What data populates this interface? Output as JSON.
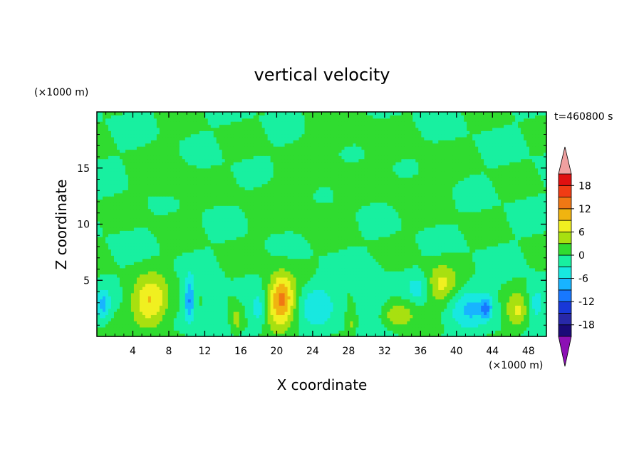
{
  "chart_data": {
    "type": "heatmap",
    "title": "vertical velocity",
    "xlabel": "X coordinate",
    "ylabel": "Z coordinate",
    "x_unit": "(×1000 m)",
    "y_unit": "(×1000 m)",
    "time_label": "t=460800 s",
    "xlim": [
      0,
      50
    ],
    "ylim": [
      0,
      20
    ],
    "x_ticks": [
      4,
      8,
      12,
      16,
      20,
      24,
      28,
      32,
      36,
      40,
      44,
      48
    ],
    "y_ticks": [
      5,
      10,
      15
    ],
    "colorbar": {
      "levels": [
        -21,
        -18,
        -15,
        -12,
        -9,
        -6,
        -3,
        0,
        3,
        6,
        9,
        12,
        15,
        18,
        21
      ],
      "tick_labels": [
        18,
        12,
        6,
        0,
        -6,
        -12,
        -18
      ],
      "colors": [
        "#1a0a78",
        "#2828a8",
        "#1838d8",
        "#1878ff",
        "#18b4ff",
        "#18e8e0",
        "#18f0a0",
        "#30dc30",
        "#a8e010",
        "#f0f020",
        "#f0b410",
        "#f07814",
        "#f03c14",
        "#e01010"
      ],
      "low_extend_color": "#8c10b4",
      "high_extend_color": "#f0a0a0"
    },
    "background_level": 0.0,
    "features": [
      {
        "x": 6.0,
        "z": 3.0,
        "value": 9.0,
        "sx": 2.0,
        "sz": 2.3
      },
      {
        "x": 20.5,
        "z": 3.3,
        "value": 13.0,
        "sx": 1.5,
        "sz": 2.2
      },
      {
        "x": 33.5,
        "z": 2.0,
        "value": 5.5,
        "sx": 1.7,
        "sz": 1.2
      },
      {
        "x": 38.3,
        "z": 4.6,
        "value": 6.5,
        "sx": 1.7,
        "sz": 1.8
      },
      {
        "x": 46.8,
        "z": 2.2,
        "value": 6.0,
        "sx": 1.3,
        "sz": 1.6
      },
      {
        "x": 15.5,
        "z": 1.5,
        "value": 4.5,
        "sx": 0.6,
        "sz": 1.2
      },
      {
        "x": 28.3,
        "z": 1.2,
        "value": 3.5,
        "sx": 0.5,
        "sz": 0.9
      },
      {
        "x": 10.3,
        "z": 3.2,
        "value": -9.5,
        "sx": 0.6,
        "sz": 2.0
      },
      {
        "x": 13.0,
        "z": 2.3,
        "value": -4.0,
        "sx": 1.2,
        "sz": 1.8
      },
      {
        "x": 18.0,
        "z": 2.3,
        "value": -4.5,
        "sx": 0.8,
        "sz": 1.6
      },
      {
        "x": 24.5,
        "z": 3.0,
        "value": -5.0,
        "sx": 2.0,
        "sz": 2.0
      },
      {
        "x": 30.5,
        "z": 3.5,
        "value": -4.0,
        "sx": 1.6,
        "sz": 2.0
      },
      {
        "x": 35.8,
        "z": 4.4,
        "value": -4.0,
        "sx": 1.2,
        "sz": 1.2
      },
      {
        "x": 41.5,
        "z": 2.5,
        "value": -5.5,
        "sx": 2.5,
        "sz": 2.0
      },
      {
        "x": 43.3,
        "z": 2.6,
        "value": -7.5,
        "sx": 0.6,
        "sz": 0.9
      },
      {
        "x": 0.7,
        "z": 2.8,
        "value": -6.5,
        "sx": 0.8,
        "sz": 1.3
      },
      {
        "x": 48.8,
        "z": 3.0,
        "value": -5.0,
        "sx": 1.0,
        "sz": 1.6
      },
      {
        "x": 8.0,
        "z": 14.0,
        "value": 1.5,
        "sx": 3.0,
        "sz": 3.0
      },
      {
        "x": 22.0,
        "z": 12.0,
        "value": 1.5,
        "sx": 5.0,
        "sz": 3.0
      },
      {
        "x": 36.0,
        "z": 13.5,
        "value": 1.3,
        "sx": 4.0,
        "sz": 3.0
      },
      {
        "x": 27.0,
        "z": 18.0,
        "value": 1.5,
        "sx": 4.0,
        "sz": 2.5
      }
    ]
  }
}
